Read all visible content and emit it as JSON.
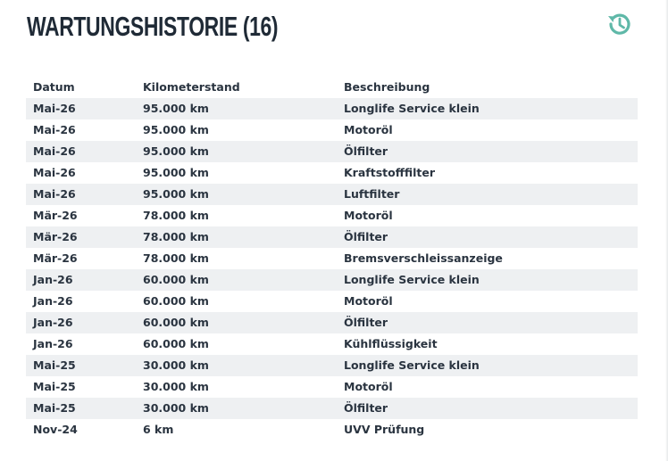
{
  "header": {
    "title": "WARTUNGSHISTORIE (16)"
  },
  "table": {
    "columns": [
      "Datum",
      "Kilometerstand",
      "Beschreibung"
    ],
    "rows": [
      [
        "Mai-26",
        "95.000 km",
        "Longlife Service klein"
      ],
      [
        "Mai-26",
        "95.000 km",
        "Motoröl"
      ],
      [
        "Mai-26",
        "95.000 km",
        "Ölfilter"
      ],
      [
        "Mai-26",
        "95.000 km",
        "Kraftstofffilter"
      ],
      [
        "Mai-26",
        "95.000 km",
        "Luftfilter"
      ],
      [
        "Mär-26",
        "78.000 km",
        "Motoröl"
      ],
      [
        "Mär-26",
        "78.000 km",
        "Ölfilter"
      ],
      [
        "Mär-26",
        "78.000 km",
        "Bremsverschleissanzeige"
      ],
      [
        "Jan-26",
        "60.000 km",
        "Longlife Service klein"
      ],
      [
        "Jan-26",
        "60.000 km",
        "Motoröl"
      ],
      [
        "Jan-26",
        "60.000 km",
        "Ölfilter"
      ],
      [
        "Jan-26",
        "60.000 km",
        "Kühlflüssigkeit"
      ],
      [
        "Mai-25",
        "30.000 km",
        "Longlife Service klein"
      ],
      [
        "Mai-25",
        "30.000 km",
        "Motoröl"
      ],
      [
        "Mai-25",
        "30.000 km",
        "Ölfilter"
      ],
      [
        "Nov-24",
        "6 km",
        "UVV Prüfung"
      ]
    ]
  }
}
